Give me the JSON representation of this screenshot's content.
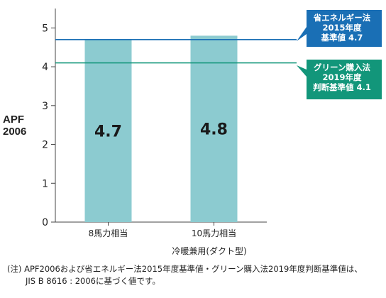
{
  "chart_data": {
    "type": "bar",
    "categories": [
      "8馬力相当",
      "10馬力相当"
    ],
    "values": [
      4.7,
      4.8
    ],
    "value_labels": [
      "4.7",
      "4.8"
    ],
    "ylabel_lines": [
      "APF",
      "2006"
    ],
    "xlabel": "冷暖兼用(ダクト型)",
    "ylim": [
      0,
      5.5
    ],
    "yticks": [
      0,
      1,
      2,
      3,
      4,
      5
    ],
    "bar_color": "#8ccbd0",
    "reference_lines": [
      {
        "value": 4.7,
        "color": "#1a6fb5",
        "label_lines": [
          "省エネルギー法",
          "2015年度",
          "基準値 4.7"
        ]
      },
      {
        "value": 4.1,
        "color": "#12967a",
        "label_lines": [
          "グリーン購入法",
          "2019年度",
          "判断基準値 4.1"
        ]
      }
    ],
    "grid": false,
    "legend": "none"
  },
  "note": {
    "line1": "(注) APF2006および省エネルギー法2015年度基準値・グリーン購入法2019年度判断基準値は、",
    "line2": "JIS B 8616 : 2006に基づく値です。"
  }
}
